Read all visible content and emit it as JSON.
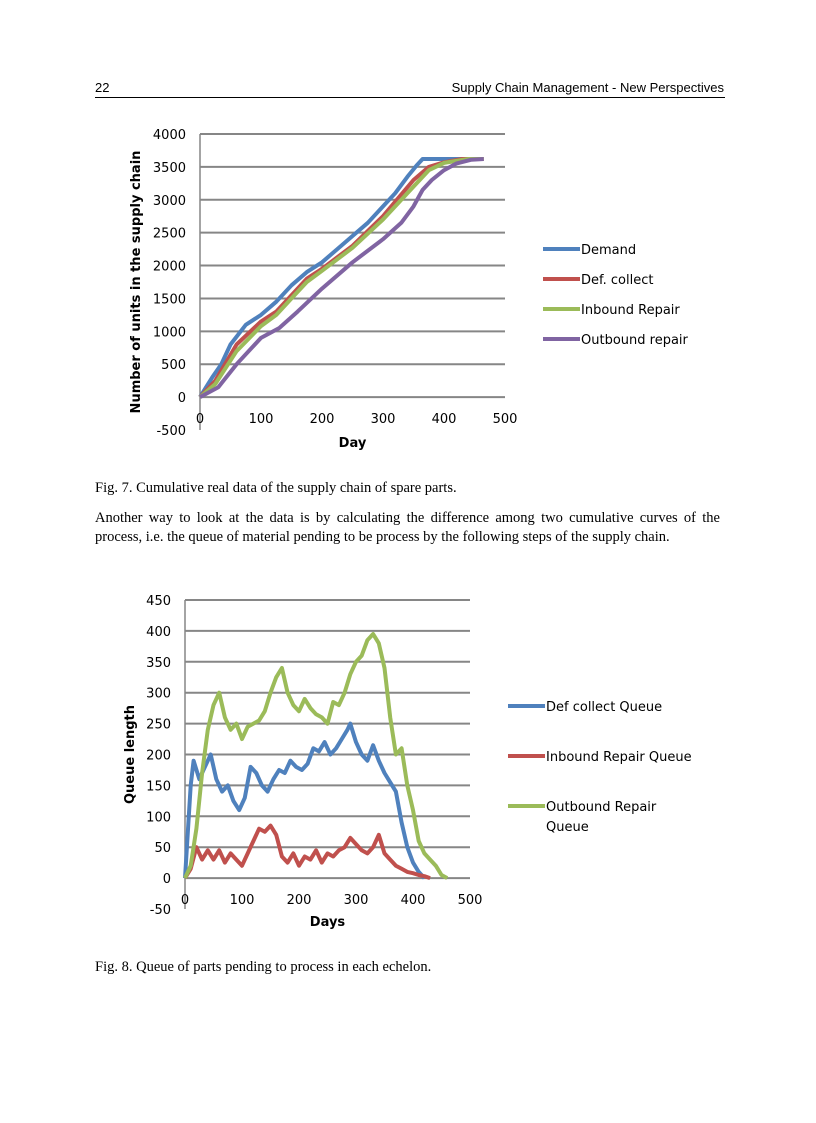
{
  "header": {
    "page_number": "22",
    "running_title": "Supply Chain Management - New Perspectives"
  },
  "figure7_caption": "Fig. 7. Cumulative real data of the supply chain of spare parts.",
  "paragraph": "Another way to look at the data is by calculating the difference among two cumulative curves of the process, i.e. the queue of material pending to be process by the following steps of the supply chain.",
  "figure8_caption": "Fig. 8. Queue of parts pending to process in each echelon.",
  "chart_data": [
    {
      "type": "line",
      "title": "",
      "xlabel": "Day",
      "ylabel": "Number of units in the supply chain",
      "xlim": [
        0,
        500
      ],
      "ylim": [
        -500,
        4000
      ],
      "xticks": [
        "0",
        "100",
        "200",
        "300",
        "400",
        "500"
      ],
      "yticks": [
        "-500",
        "0",
        "500",
        "1000",
        "1500",
        "2000",
        "2500",
        "3000",
        "3500",
        "4000"
      ],
      "grid": true,
      "legend": "right",
      "series": [
        {
          "name": "Demand",
          "color": "#4f81bd",
          "x": [
            0,
            10,
            20,
            35,
            50,
            75,
            100,
            125,
            150,
            175,
            200,
            225,
            250,
            275,
            300,
            320,
            340,
            355,
            365,
            465
          ],
          "y": [
            0,
            150,
            300,
            500,
            800,
            1100,
            1250,
            1450,
            1700,
            1900,
            2050,
            2250,
            2450,
            2650,
            2900,
            3100,
            3350,
            3520,
            3620,
            3620
          ]
        },
        {
          "name": "Def. collect",
          "color": "#c0504d",
          "x": [
            0,
            25,
            60,
            100,
            125,
            150,
            175,
            200,
            250,
            300,
            350,
            375,
            400,
            430,
            465
          ],
          "y": [
            0,
            250,
            800,
            1150,
            1300,
            1550,
            1800,
            1950,
            2300,
            2750,
            3300,
            3500,
            3570,
            3620,
            3620
          ]
        },
        {
          "name": "Inbound Repair",
          "color": "#9bbb59",
          "x": [
            0,
            25,
            60,
            100,
            125,
            150,
            175,
            200,
            250,
            300,
            350,
            375,
            400,
            440,
            465
          ],
          "y": [
            0,
            200,
            700,
            1080,
            1250,
            1500,
            1750,
            1920,
            2270,
            2700,
            3200,
            3450,
            3560,
            3620,
            3620
          ]
        },
        {
          "name": "Outbound repair",
          "color": "#8064a2",
          "x": [
            0,
            30,
            60,
            100,
            130,
            160,
            200,
            250,
            300,
            330,
            350,
            365,
            380,
            400,
            420,
            445,
            465
          ],
          "y": [
            0,
            150,
            500,
            900,
            1050,
            1300,
            1650,
            2050,
            2400,
            2650,
            2900,
            3150,
            3300,
            3450,
            3550,
            3610,
            3620
          ]
        }
      ]
    },
    {
      "type": "line",
      "title": "",
      "xlabel": "Days",
      "ylabel": "Queue length",
      "xlim": [
        0,
        500
      ],
      "ylim": [
        -50,
        450
      ],
      "xticks": [
        "0",
        "100",
        "200",
        "300",
        "400",
        "500"
      ],
      "yticks": [
        "-50",
        "0",
        "50",
        "100",
        "150",
        "200",
        "250",
        "300",
        "350",
        "400",
        "450"
      ],
      "grid": true,
      "legend": "right",
      "series": [
        {
          "name": "Def collect Queue",
          "color": "#4f81bd",
          "x": [
            0,
            10,
            15,
            25,
            35,
            45,
            55,
            65,
            75,
            85,
            95,
            105,
            115,
            125,
            135,
            145,
            155,
            165,
            175,
            185,
            195,
            205,
            215,
            225,
            235,
            245,
            255,
            265,
            275,
            285,
            290,
            300,
            310,
            320,
            330,
            340,
            350,
            360,
            370,
            380,
            390,
            400,
            410,
            420
          ],
          "y": [
            0,
            150,
            190,
            160,
            180,
            200,
            160,
            140,
            150,
            125,
            110,
            130,
            180,
            170,
            150,
            140,
            160,
            175,
            170,
            190,
            180,
            175,
            185,
            210,
            205,
            220,
            200,
            210,
            225,
            240,
            250,
            220,
            200,
            190,
            215,
            190,
            170,
            155,
            140,
            90,
            50,
            25,
            10,
            0
          ]
        },
        {
          "name": "Inbound Repair Queue",
          "color": "#c0504d",
          "x": [
            0,
            10,
            20,
            30,
            40,
            50,
            60,
            70,
            80,
            90,
            100,
            110,
            120,
            130,
            140,
            150,
            160,
            170,
            180,
            190,
            200,
            210,
            220,
            230,
            240,
            250,
            260,
            270,
            280,
            290,
            300,
            310,
            320,
            330,
            340,
            350,
            360,
            370,
            380,
            390,
            400,
            410,
            420,
            430
          ],
          "y": [
            0,
            15,
            50,
            30,
            45,
            30,
            45,
            25,
            40,
            30,
            20,
            40,
            60,
            80,
            75,
            85,
            70,
            35,
            25,
            40,
            20,
            35,
            30,
            45,
            25,
            40,
            35,
            45,
            50,
            65,
            55,
            45,
            40,
            50,
            70,
            40,
            30,
            20,
            15,
            10,
            8,
            5,
            3,
            0
          ]
        },
        {
          "name": "Outbound Repair Queue",
          "color": "#9bbb59",
          "x": [
            0,
            10,
            20,
            30,
            40,
            50,
            60,
            70,
            80,
            90,
            100,
            110,
            120,
            130,
            140,
            150,
            160,
            170,
            180,
            190,
            200,
            210,
            220,
            230,
            240,
            250,
            260,
            270,
            280,
            290,
            300,
            310,
            320,
            330,
            340,
            350,
            360,
            370,
            380,
            390,
            400,
            410,
            420,
            430,
            440,
            450,
            460
          ],
          "y": [
            0,
            20,
            80,
            170,
            240,
            280,
            300,
            260,
            240,
            250,
            225,
            245,
            250,
            255,
            270,
            300,
            325,
            340,
            300,
            280,
            270,
            290,
            275,
            265,
            260,
            250,
            285,
            280,
            300,
            330,
            350,
            360,
            385,
            395,
            380,
            340,
            260,
            200,
            210,
            150,
            110,
            60,
            40,
            30,
            20,
            5,
            0
          ]
        }
      ]
    }
  ]
}
